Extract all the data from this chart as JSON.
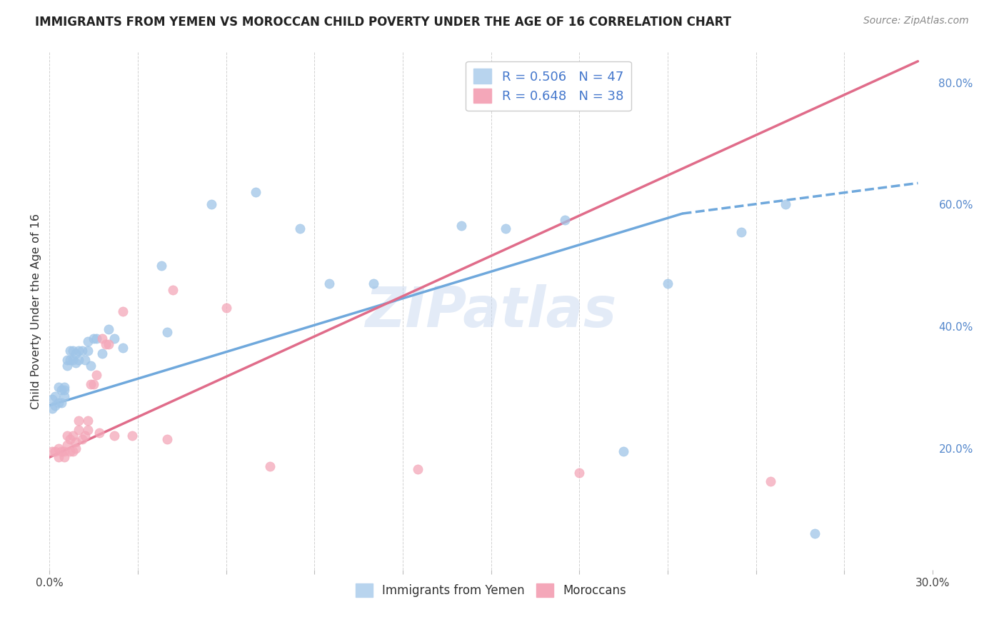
{
  "title": "IMMIGRANTS FROM YEMEN VS MOROCCAN CHILD POVERTY UNDER THE AGE OF 16 CORRELATION CHART",
  "source": "Source: ZipAtlas.com",
  "ylabel": "Child Poverty Under the Age of 16",
  "xmin": 0.0,
  "xmax": 0.3,
  "ymin": 0.0,
  "ymax": 0.85,
  "xticks": [
    0.0,
    0.03,
    0.06,
    0.09,
    0.12,
    0.15,
    0.18,
    0.21,
    0.24,
    0.27,
    0.3
  ],
  "xtick_labels_show": [
    "0.0%",
    "",
    "",
    "",
    "",
    "",
    "",
    "",
    "",
    "",
    "30.0%"
  ],
  "ytick_vals_right": [
    0.2,
    0.4,
    0.6,
    0.8
  ],
  "ytick_labels_right": [
    "20.0%",
    "40.0%",
    "60.0%",
    "80.0%"
  ],
  "legend_label_blue": "R = 0.506   N = 47",
  "legend_label_pink": "R = 0.648   N = 38",
  "bottom_legend_blue": "Immigrants from Yemen",
  "bottom_legend_pink": "Moroccans",
  "scatter_yemen_x": [
    0.001,
    0.001,
    0.002,
    0.002,
    0.003,
    0.003,
    0.004,
    0.004,
    0.005,
    0.005,
    0.005,
    0.006,
    0.006,
    0.007,
    0.007,
    0.008,
    0.008,
    0.009,
    0.009,
    0.01,
    0.01,
    0.011,
    0.012,
    0.013,
    0.013,
    0.014,
    0.015,
    0.016,
    0.018,
    0.02,
    0.022,
    0.025,
    0.038,
    0.04,
    0.055,
    0.07,
    0.085,
    0.095,
    0.11,
    0.14,
    0.155,
    0.175,
    0.195,
    0.21,
    0.235,
    0.25,
    0.26
  ],
  "scatter_yemen_y": [
    0.265,
    0.28,
    0.27,
    0.285,
    0.275,
    0.3,
    0.295,
    0.275,
    0.295,
    0.285,
    0.3,
    0.345,
    0.335,
    0.36,
    0.345,
    0.36,
    0.345,
    0.355,
    0.34,
    0.36,
    0.345,
    0.36,
    0.345,
    0.36,
    0.375,
    0.335,
    0.38,
    0.38,
    0.355,
    0.395,
    0.38,
    0.365,
    0.5,
    0.39,
    0.6,
    0.62,
    0.56,
    0.47,
    0.47,
    0.565,
    0.56,
    0.575,
    0.195,
    0.47,
    0.555,
    0.6,
    0.06
  ],
  "scatter_moroccan_x": [
    0.001,
    0.002,
    0.003,
    0.003,
    0.004,
    0.005,
    0.005,
    0.006,
    0.006,
    0.007,
    0.007,
    0.008,
    0.008,
    0.009,
    0.009,
    0.01,
    0.01,
    0.011,
    0.012,
    0.013,
    0.013,
    0.014,
    0.015,
    0.016,
    0.017,
    0.018,
    0.019,
    0.02,
    0.022,
    0.025,
    0.028,
    0.04,
    0.042,
    0.06,
    0.075,
    0.125,
    0.18,
    0.245
  ],
  "scatter_moroccan_y": [
    0.195,
    0.195,
    0.2,
    0.185,
    0.195,
    0.195,
    0.185,
    0.205,
    0.22,
    0.215,
    0.195,
    0.22,
    0.195,
    0.21,
    0.2,
    0.245,
    0.23,
    0.215,
    0.22,
    0.245,
    0.23,
    0.305,
    0.305,
    0.32,
    0.225,
    0.38,
    0.37,
    0.37,
    0.22,
    0.425,
    0.22,
    0.215,
    0.46,
    0.43,
    0.17,
    0.165,
    0.16,
    0.145
  ],
  "trendline_yemen_x0": 0.0,
  "trendline_yemen_y0": 0.27,
  "trendline_yemen_x1_solid": 0.215,
  "trendline_yemen_y1_solid": 0.585,
  "trendline_yemen_x1_dash": 0.295,
  "trendline_yemen_y1_dash": 0.635,
  "trendline_moroccan_x0": 0.0,
  "trendline_moroccan_y0": 0.185,
  "trendline_moroccan_x1": 0.295,
  "trendline_moroccan_y1": 0.835,
  "scatter_color_blue": "#9fc5e8",
  "scatter_color_pink": "#f4a7b9",
  "trendline_color_blue": "#6fa8dc",
  "trendline_color_pink": "#e06c8a",
  "watermark": "ZIPatlas",
  "watermark_color": "#c8d8f0",
  "background": "#ffffff",
  "grid_color": "#cccccc",
  "title_color": "#222222",
  "source_color": "#888888",
  "ylabel_color": "#333333",
  "right_tick_color": "#5588cc"
}
